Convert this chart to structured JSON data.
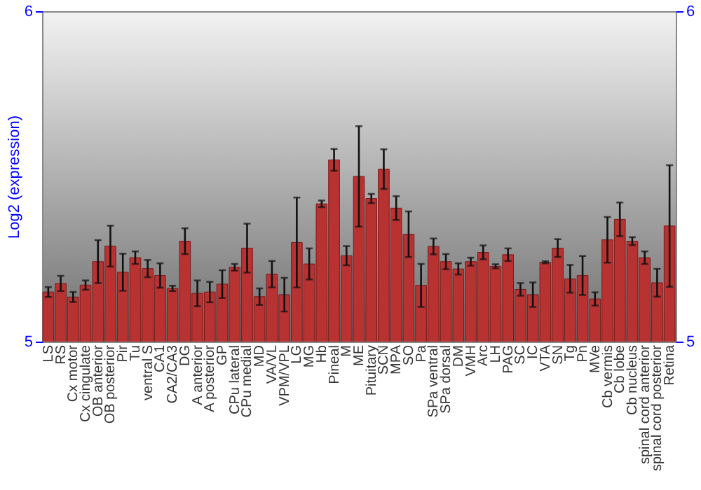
{
  "chart_data": {
    "type": "bar",
    "ylabel": "Log2 (expression)",
    "categories": [
      "LS",
      "RS",
      "Cx motor",
      "Cx cingulate",
      "OB anterior",
      "OB posterior",
      "Pir",
      "Tu",
      "ventral S",
      "CA1",
      "CA2/CA3",
      "DG",
      "A anterior",
      "A posterior",
      "GP",
      "CPu lateral",
      "CPu medial",
      "MD",
      "VA/VL",
      "VPM/VPL",
      "LG",
      "MG",
      "Hb",
      "Pineal",
      "M",
      "ME",
      "Pituitary",
      "SCN",
      "MPA",
      "SO",
      "Pa",
      "SPa ventral",
      "SPa dorsal",
      "DM",
      "VMH",
      "Arc",
      "LH",
      "PAG",
      "SC",
      "IC",
      "VTA",
      "SN",
      "Tg",
      "Pn",
      "MVe",
      "Cb vermis",
      "Cb lobe",
      "Cb nucleus",
      "spinal cord anterior",
      "spinal cord posterior",
      "Retina"
    ],
    "values": [
      5.15,
      5.176,
      5.135,
      5.171,
      5.242,
      5.289,
      5.21,
      5.254,
      5.221,
      5.2,
      5.161,
      5.304,
      5.146,
      5.15,
      5.174,
      5.225,
      5.283,
      5.136,
      5.204,
      5.142,
      5.3,
      5.235,
      5.417,
      5.55,
      5.26,
      5.5,
      5.433,
      5.522,
      5.404,
      5.325,
      5.17,
      5.288,
      5.242,
      5.22,
      5.242,
      5.27,
      5.228,
      5.263,
      5.158,
      5.142,
      5.24,
      5.283,
      5.19,
      5.2,
      5.129,
      5.308,
      5.37,
      5.304,
      5.254,
      5.178,
      5.35
    ],
    "errors": [
      0.015,
      0.023,
      0.015,
      0.014,
      0.065,
      0.062,
      0.056,
      0.019,
      0.026,
      0.037,
      0.008,
      0.039,
      0.039,
      0.031,
      0.042,
      0.01,
      0.074,
      0.025,
      0.04,
      0.051,
      0.136,
      0.047,
      0.01,
      0.033,
      0.029,
      0.152,
      0.014,
      0.06,
      0.036,
      0.069,
      0.065,
      0.024,
      0.023,
      0.017,
      0.012,
      0.021,
      0.006,
      0.019,
      0.019,
      0.037,
      0.003,
      0.027,
      0.042,
      0.059,
      0.02,
      0.069,
      0.051,
      0.012,
      0.019,
      0.042,
      0.184
    ],
    "color": "#b83232",
    "ylim": [
      5,
      6
    ],
    "yticks": [
      5,
      6
    ],
    "y2lim": [
      5,
      6
    ],
    "y2ticks": [
      5,
      6
    ]
  }
}
